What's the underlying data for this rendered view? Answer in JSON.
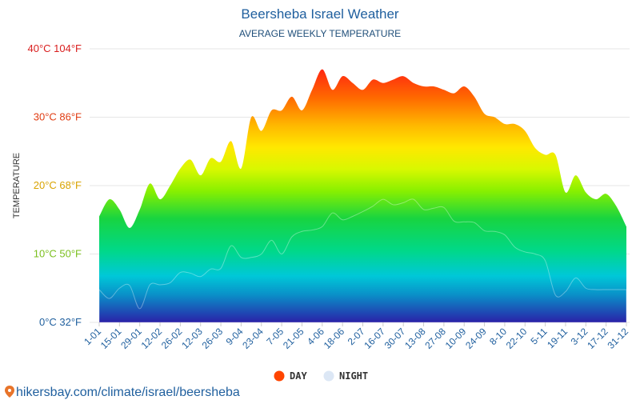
{
  "chart_data": {
    "type": "area",
    "title": "Beersheba Israel Weather",
    "subtitle": "AVERAGE WEEKLY TEMPERATURE",
    "ylabel": "TEMPERATURE",
    "ylim": [
      0,
      40
    ],
    "yticks": [
      {
        "value": 0,
        "label": "0°C 32°F",
        "color": "#1f5f9e"
      },
      {
        "value": 10,
        "label": "10°C 50°F",
        "color": "#7bbf1e"
      },
      {
        "value": 20,
        "label": "20°C 68°F",
        "color": "#d9a300"
      },
      {
        "value": 30,
        "label": "30°C 86°F",
        "color": "#e03c12"
      },
      {
        "value": 40,
        "label": "40°C 104°F",
        "color": "#d91e1e"
      }
    ],
    "categories": [
      "1-01",
      "15-01",
      "29-01",
      "12-02",
      "26-02",
      "12-03",
      "26-03",
      "9-04",
      "23-04",
      "7-05",
      "21-05",
      "4-06",
      "18-06",
      "2-07",
      "16-07",
      "30-07",
      "13-08",
      "27-08",
      "10-09",
      "24-09",
      "8-10",
      "22-10",
      "5-11",
      "19-11",
      "3-12",
      "17-12",
      "31-12"
    ],
    "x": [
      1,
      3,
      5,
      7,
      9,
      11,
      13,
      15,
      17,
      19,
      21,
      23,
      25,
      27,
      29,
      31,
      33,
      35,
      37,
      39,
      41,
      43,
      45,
      47,
      49,
      51,
      53
    ],
    "series": [
      {
        "name": "DAY",
        "x": [
          1,
          2,
          3,
          4,
          5,
          6,
          7,
          8,
          9,
          10,
          11,
          12,
          13,
          14,
          15,
          16,
          17,
          18,
          19,
          20,
          21,
          22,
          23,
          24,
          25,
          26,
          27,
          28,
          29,
          30,
          31,
          32,
          33,
          34,
          35,
          36,
          37,
          38,
          39,
          40,
          41,
          42,
          43,
          44,
          45,
          46,
          47,
          48,
          49,
          50,
          51,
          52,
          53
        ],
        "values": [
          15.5,
          18,
          16.5,
          13.8,
          16.5,
          20.3,
          18,
          20,
          22.5,
          23.8,
          21.5,
          24,
          23.5,
          26.5,
          22.5,
          30,
          28,
          31,
          31,
          33,
          31,
          34,
          37,
          34,
          36,
          35,
          34,
          35.5,
          35,
          35.5,
          36,
          35,
          34.5,
          34.5,
          34,
          33.5,
          34.5,
          33,
          30.5,
          30,
          29,
          29,
          28,
          25.5,
          24.5,
          24.5,
          19,
          21.5,
          19,
          18,
          18.8,
          17,
          14
        ]
      },
      {
        "name": "NIGHT",
        "x": [
          1,
          2,
          3,
          4,
          5,
          6,
          7,
          8,
          9,
          10,
          11,
          12,
          13,
          14,
          15,
          16,
          17,
          18,
          19,
          20,
          21,
          22,
          23,
          24,
          25,
          26,
          27,
          28,
          29,
          30,
          31,
          32,
          33,
          34,
          35,
          36,
          37,
          38,
          39,
          40,
          41,
          42,
          43,
          44,
          45,
          46,
          47,
          48,
          49,
          50,
          51,
          52,
          53
        ],
        "values": [
          4.8,
          3.5,
          5,
          5.4,
          2,
          5.5,
          5.5,
          5.8,
          7.3,
          7.2,
          6.7,
          7.8,
          7.9,
          11.2,
          9.5,
          9.5,
          10,
          12,
          10,
          12.5,
          13.3,
          13.5,
          14,
          16,
          15,
          15.5,
          16.2,
          17,
          18,
          17.2,
          17.5,
          18,
          16.5,
          16.7,
          16.8,
          14.8,
          14.7,
          14.6,
          13.4,
          13.3,
          12.8,
          11,
          10.3,
          10,
          9,
          4,
          4.5,
          6.5,
          5,
          4.8,
          4.8,
          4.8,
          4.8
        ]
      }
    ],
    "legend": [
      {
        "label": "DAY",
        "color": "#ff4500"
      },
      {
        "label": "NIGHT",
        "color": "#dce7f5"
      }
    ],
    "legend_position": "bottom-center",
    "grid": true
  },
  "source": {
    "url_text": "hikersbay.com/climate/israel/beersheba",
    "pin_color": "#e8742a"
  }
}
